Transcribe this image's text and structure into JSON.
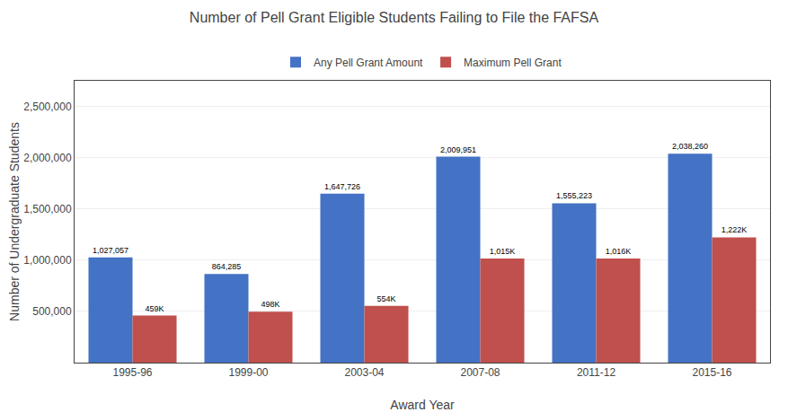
{
  "chart_data": {
    "type": "bar",
    "title": "Number of Pell Grant Eligible Students Failing to File the FAFSA",
    "xlabel": "Award Year",
    "ylabel": "Number of Undergraduate Students",
    "categories": [
      "1995-96",
      "1999-00",
      "2003-04",
      "2007-08",
      "2011-12",
      "2015-16"
    ],
    "series": [
      {
        "name": "Any Pell Grant Amount",
        "color": "#4472C4",
        "values": [
          1027057,
          864285,
          1647726,
          2009951,
          1555223,
          2038260
        ],
        "value_labels": [
          "1,027,057",
          "864,285",
          "1,647,726",
          "2,009,951",
          "1,555,223",
          "2,038,260"
        ]
      },
      {
        "name": "Maximum Pell Grant",
        "color": "#C0504D",
        "values": [
          459000,
          498000,
          554000,
          1015000,
          1016000,
          1222000
        ],
        "value_labels": [
          "459K",
          "498K",
          "554K",
          "1,015K",
          "1,016K",
          "1,222K"
        ]
      }
    ],
    "ylim": [
      0,
      2750000
    ],
    "yticks": [
      {
        "value": 500000,
        "label": "500,000"
      },
      {
        "value": 1000000,
        "label": "1,000,000"
      },
      {
        "value": 1500000,
        "label": "1,500,000"
      },
      {
        "value": 2000000,
        "label": "2,000,000"
      },
      {
        "value": 2500000,
        "label": "2,500,000"
      }
    ],
    "grid": true,
    "legend": "top",
    "data_labels": true
  }
}
